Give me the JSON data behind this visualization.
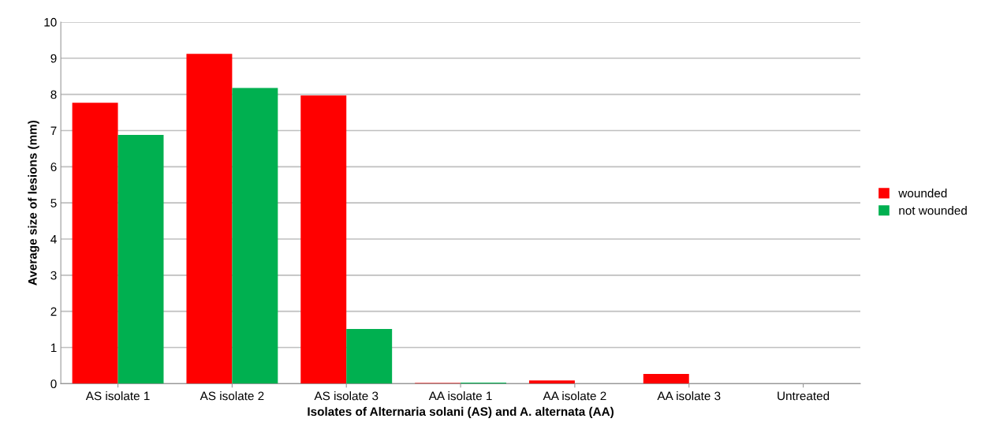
{
  "chart_data": {
    "type": "bar",
    "xlabel": "Isolates of Alternaria solani (AS) and A. alternata (AA)",
    "ylabel": "Average size of lesions (mm)",
    "categories": [
      "AS isolate 1",
      "AS isolate 2",
      "AS isolate 3",
      "AA isolate 1",
      "AA isolate 2",
      "AA isolate 3",
      "Untreated"
    ],
    "series": [
      {
        "name": "wounded",
        "color": "#ff0000",
        "values": [
          7.77,
          9.12,
          7.97,
          0.02,
          0.09,
          0.27,
          0
        ]
      },
      {
        "name": "not wounded",
        "color": "#00b050",
        "values": [
          6.88,
          8.18,
          1.51,
          0.03,
          0,
          0,
          0
        ]
      }
    ],
    "ylim": [
      0,
      10
    ],
    "yticks": [
      0,
      1,
      2,
      3,
      4,
      5,
      6,
      7,
      8,
      9,
      10
    ],
    "grid": "y",
    "legend": "right"
  }
}
